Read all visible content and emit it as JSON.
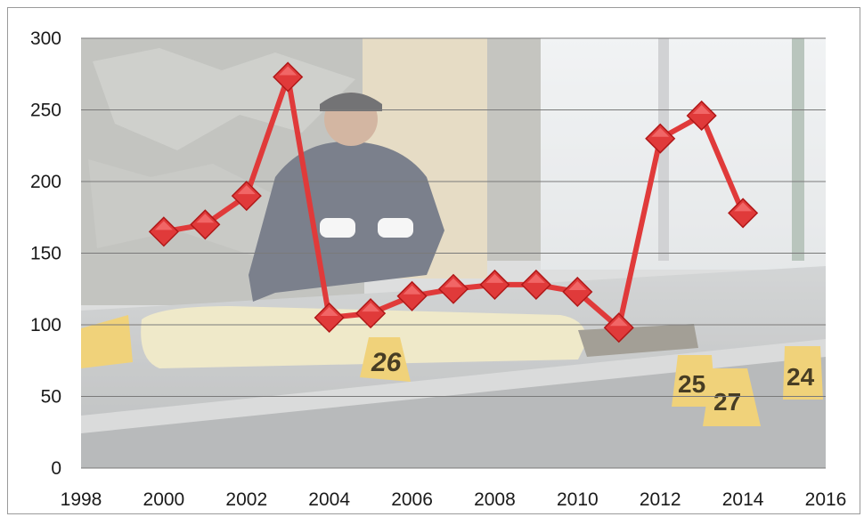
{
  "chart_data": {
    "type": "line",
    "title": "",
    "xlabel": "",
    "ylabel": "",
    "xlim": [
      1998,
      2016
    ],
    "ylim": [
      0,
      300
    ],
    "x_ticks": [
      1998,
      2000,
      2002,
      2004,
      2006,
      2008,
      2010,
      2012,
      2014,
      2016
    ],
    "y_ticks": [
      0,
      50,
      100,
      150,
      200,
      250,
      300
    ],
    "grid": "horizontal",
    "legend": "none",
    "series": [
      {
        "x": [
          2000,
          2001,
          2002,
          2003,
          2004,
          2005,
          2006,
          2007,
          2008,
          2009,
          2010,
          2011,
          2012,
          2013,
          2014
        ],
        "values": [
          165,
          170,
          190,
          273,
          105,
          108,
          120,
          125,
          128,
          128,
          123,
          98,
          230,
          246,
          178
        ],
        "color": "#e03a3a",
        "marker": "diamond"
      }
    ],
    "background": "photograph of a crime scene: investigator in cap crouching beside a covered body on a sidewalk with numbered yellow evidence markers",
    "evidence_markers": [
      "26",
      "25",
      "27",
      "24"
    ]
  }
}
